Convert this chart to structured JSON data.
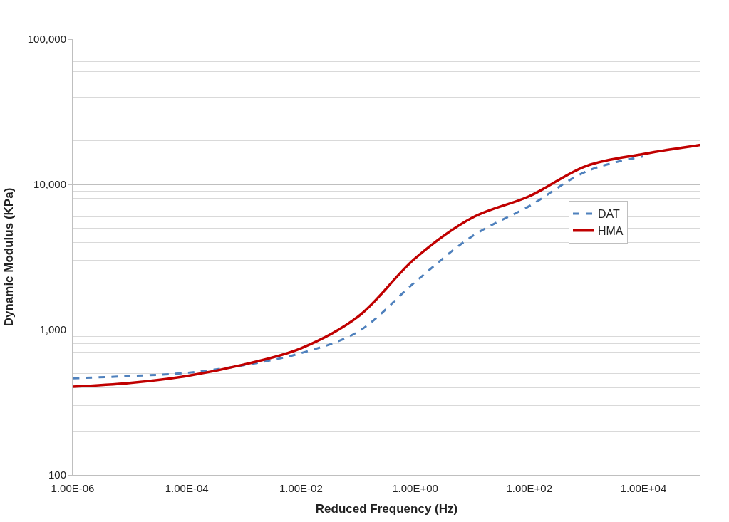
{
  "chart_data": {
    "type": "line",
    "xlabel": "Reduced Frequency (Hz)",
    "ylabel": "Dynamic Modulus (KPa)",
    "log": "xy",
    "x": [
      1e-06,
      1e-05,
      0.0001,
      0.001,
      0.01,
      0.1,
      1,
      10,
      100,
      1000,
      10000,
      100000
    ],
    "series": [
      {
        "name": "DAT",
        "color": "#4f81bd",
        "line_style": "dashed",
        "values": [
          463,
          480,
          505,
          570,
          690,
          970,
          2130,
          4400,
          7100,
          12300,
          15600,
          null
        ]
      },
      {
        "name": "HMA",
        "color": "#c00000",
        "line_style": "solid",
        "values": [
          405,
          430,
          480,
          576,
          745,
          1230,
          3100,
          5900,
          8300,
          13400,
          16200,
          18700
        ]
      }
    ],
    "xlim": [
      1e-06,
      100000.0
    ],
    "ylim": [
      100,
      100000
    ],
    "xticks": [
      {
        "value": 1e-06,
        "label": "1.00E-06"
      },
      {
        "value": 0.0001,
        "label": "1.00E-04"
      },
      {
        "value": 0.01,
        "label": "1.00E-02"
      },
      {
        "value": 1,
        "label": "1.00E+00"
      },
      {
        "value": 100,
        "label": "1.00E+02"
      },
      {
        "value": 10000,
        "label": "1.00E+04"
      }
    ],
    "yticks": [
      {
        "value": 100,
        "label": "100"
      },
      {
        "value": 1000,
        "label": "1,000"
      },
      {
        "value": 10000,
        "label": "10,000"
      },
      {
        "value": 100000,
        "label": "100,000"
      }
    ],
    "grid": "y",
    "legend": "right",
    "marker": "none"
  }
}
